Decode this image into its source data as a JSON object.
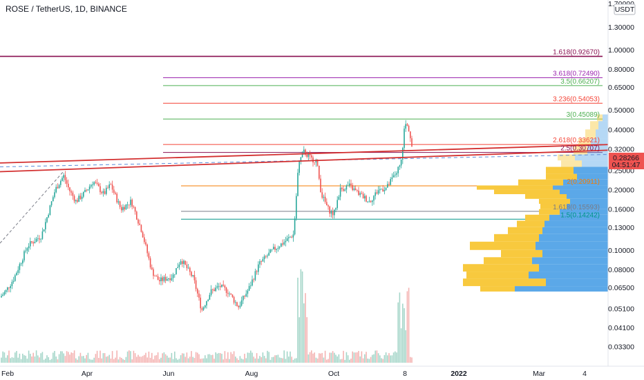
{
  "chart_title": "ROSE / TetherUS, 1D, BINANCE",
  "colors": {
    "up": "#26a69a",
    "down": "#ef5350",
    "trendline": "#d32f2f",
    "dashed_trend": "#5b8bd9",
    "vp_blue": "#5ba8e8",
    "vp_yellow": "#f8c93e",
    "price_badge": "#ef5350"
  },
  "chart_data": {
    "type": "candlestick",
    "title": "ROSE / TetherUS, 1D, BINANCE",
    "y_scale": "log",
    "ylim": [
      0.028,
      1.75
    ],
    "y_axis_currency": "USDT",
    "y_ticks": [
      "1.70000",
      "1.30000",
      "1.00000",
      "0.80000",
      "0.65000",
      "0.50000",
      "0.40000",
      "0.32000",
      "0.25000",
      "0.20000",
      "0.16000",
      "0.13000",
      "0.10000",
      "0.08000",
      "0.06500",
      "0.05100",
      "0.04100",
      "0.03300"
    ],
    "x_ticks": [
      "Feb",
      "Apr",
      "Jun",
      "Aug",
      "Oct",
      "8",
      "2022",
      "Mar",
      "4"
    ],
    "last_price": "0.28266",
    "countdown": "04:51:47",
    "fib_levels": [
      {
        "label": "1.618(0.92670)",
        "value": 0.9267,
        "color": "#880e4f",
        "full_width": true
      },
      {
        "label": "3.618(0.72490)",
        "value": 0.7249,
        "color": "#9c27b0"
      },
      {
        "label": "3.5(0.66207)",
        "value": 0.66207,
        "color": "#4caf50"
      },
      {
        "label": "3.236(0.54053)",
        "value": 0.54053,
        "color": "#f44336"
      },
      {
        "label": "3(0.45089)",
        "value": 0.45089,
        "color": "#4caf50"
      },
      {
        "label": "2.618(0.33621)",
        "value": 0.33621,
        "color": "#f44336"
      },
      {
        "label": "2.5(0.30707)",
        "value": 0.30707,
        "color": "#880e4f"
      },
      {
        "label": "2(0.20911)",
        "value": 0.20911,
        "color": "#f57c00"
      },
      {
        "label": "1.618(0.15593)",
        "value": 0.15593,
        "color": "#787b86"
      },
      {
        "label": "1.5(0.14242)",
        "value": 0.14242,
        "color": "#009688"
      }
    ],
    "trendlines": [
      {
        "name": "upper",
        "from": [
          0,
          0.272
        ],
        "to": [
          1,
          0.336
        ]
      },
      {
        "name": "lower",
        "from": [
          0,
          0.246
        ],
        "to": [
          1,
          0.315
        ]
      }
    ],
    "candle_path": [
      [
        0,
        0.058
      ],
      [
        8,
        0.062
      ],
      [
        20,
        0.072
      ],
      [
        40,
        0.105
      ],
      [
        60,
        0.118
      ],
      [
        80,
        0.2
      ],
      [
        92,
        0.235
      ],
      [
        100,
        0.2
      ],
      [
        110,
        0.175
      ],
      [
        122,
        0.192
      ],
      [
        135,
        0.22
      ],
      [
        150,
        0.19
      ],
      [
        160,
        0.212
      ],
      [
        175,
        0.16
      ],
      [
        190,
        0.175
      ],
      [
        205,
        0.125
      ],
      [
        220,
        0.078
      ],
      [
        230,
        0.07
      ],
      [
        250,
        0.074
      ],
      [
        262,
        0.09
      ],
      [
        280,
        0.072
      ],
      [
        292,
        0.05
      ],
      [
        305,
        0.062
      ],
      [
        318,
        0.066
      ],
      [
        330,
        0.062
      ],
      [
        345,
        0.052
      ],
      [
        360,
        0.064
      ],
      [
        375,
        0.085
      ],
      [
        395,
        0.1
      ],
      [
        412,
        0.11
      ],
      [
        425,
        0.12
      ],
      [
        432,
        0.27
      ],
      [
        440,
        0.31
      ],
      [
        450,
        0.285
      ],
      [
        458,
        0.28
      ],
      [
        465,
        0.19
      ],
      [
        475,
        0.16
      ],
      [
        483,
        0.15
      ],
      [
        492,
        0.2
      ],
      [
        505,
        0.21
      ],
      [
        520,
        0.19
      ],
      [
        535,
        0.175
      ],
      [
        548,
        0.2
      ],
      [
        560,
        0.205
      ],
      [
        572,
        0.24
      ],
      [
        580,
        0.265
      ],
      [
        586,
        0.43
      ],
      [
        592,
        0.4
      ],
      [
        598,
        0.29
      ]
    ]
  }
}
